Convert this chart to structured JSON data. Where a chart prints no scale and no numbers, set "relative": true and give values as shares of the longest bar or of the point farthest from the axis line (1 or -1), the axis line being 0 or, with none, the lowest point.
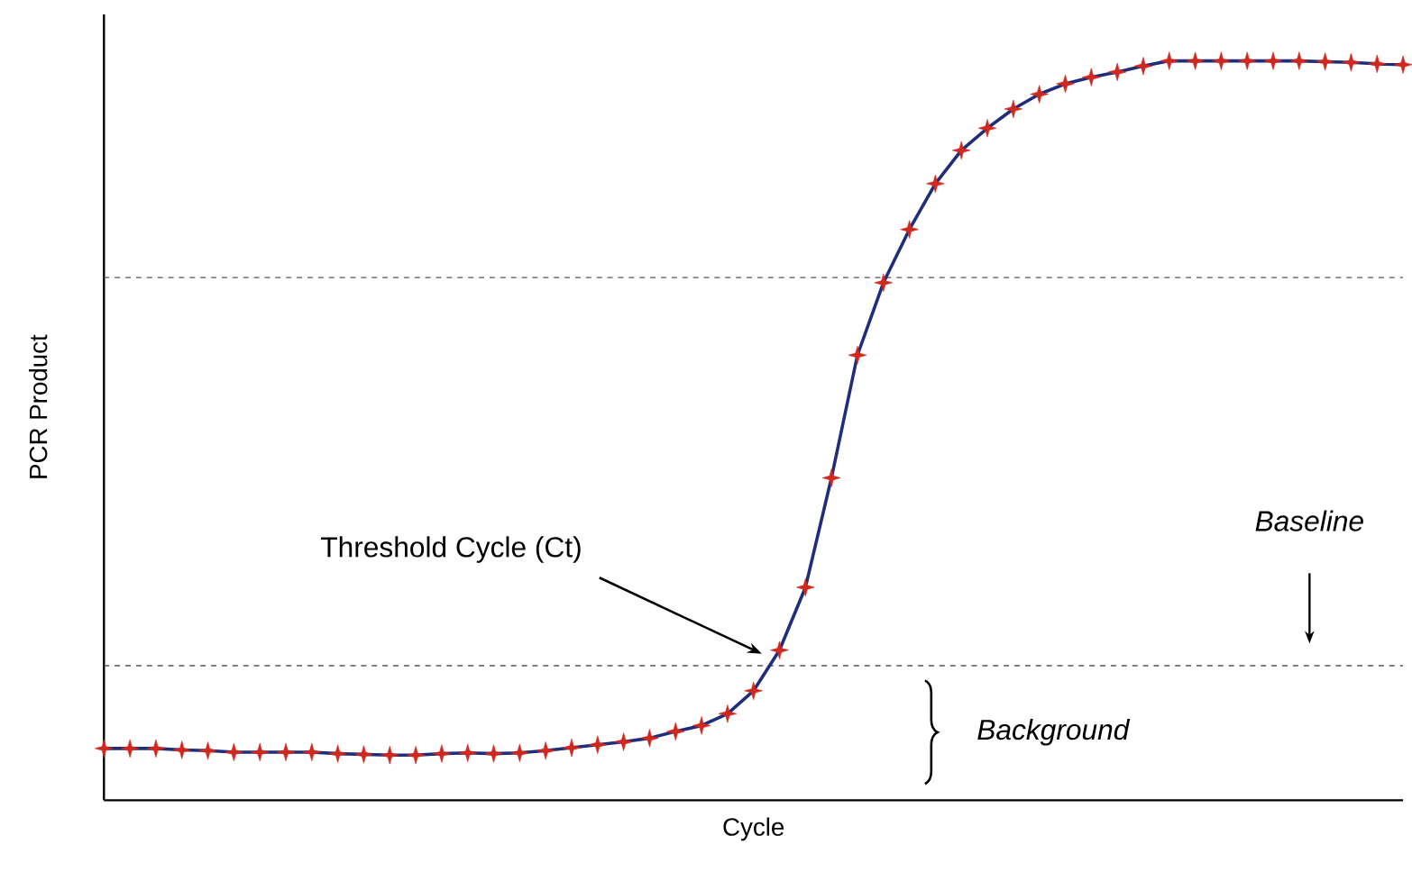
{
  "chart_data": {
    "type": "line",
    "relative": true,
    "xlabel": "Cycle",
    "ylabel": "PCR Product",
    "tick_labels": false,
    "categories": [
      null,
      null,
      null,
      null,
      null,
      null,
      null,
      null,
      null,
      null,
      null,
      null,
      null,
      null,
      null,
      null,
      null,
      null,
      null,
      null,
      null,
      null,
      null,
      null,
      null,
      null,
      null,
      null,
      null,
      null,
      null,
      null,
      null,
      null,
      null,
      null,
      null,
      null,
      null,
      null,
      null,
      null,
      null,
      null,
      null,
      null,
      null,
      null,
      null,
      null,
      null
    ],
    "series": [
      {
        "color": "#1f2d7b",
        "marker": "star",
        "colors": [
          "#d0281f",
          "#d0281f",
          "#d0281f",
          "#d0281f",
          "#d0281f",
          "#d0281f",
          "#d0281f",
          "#d0281f",
          "#d0281f",
          "#d0281f",
          "#d0281f",
          "#d0281f",
          "#d0281f",
          "#d0281f",
          "#d0281f",
          "#d0281f",
          "#d0281f",
          "#d0281f",
          "#d0281f",
          "#d0281f",
          "#d0281f",
          "#d0281f",
          "#d0281f",
          "#d0281f",
          "#d0281f",
          "#d0281f",
          "#d0281f",
          "#d0281f",
          "#d0281f",
          "#d0281f",
          "#d0281f",
          "#d0281f",
          "#d0281f",
          "#d0281f",
          "#d0281f",
          "#d0281f",
          "#d0281f",
          "#d0281f",
          "#d0281f",
          "#d0281f",
          "#d0281f",
          "#d0281f",
          "#d0281f",
          "#d0281f",
          "#d0281f",
          "#d0281f",
          "#d0281f",
          "#d0281f",
          "#d0281f",
          "#d0281f",
          "#d0281f"
        ],
        "values": [
          0.07,
          0.07,
          0.07,
          0.068,
          0.067,
          0.065,
          0.065,
          0.065,
          0.065,
          0.063,
          0.062,
          0.061,
          0.061,
          0.063,
          0.064,
          0.063,
          0.064,
          0.067,
          0.071,
          0.075,
          0.079,
          0.084,
          0.093,
          0.101,
          0.117,
          0.148,
          0.203,
          0.288,
          0.436,
          0.602,
          0.7,
          0.772,
          0.834,
          0.879,
          0.909,
          0.935,
          0.955,
          0.969,
          0.978,
          0.985,
          0.993,
          1.0,
          1.0,
          1.0,
          1.0,
          1.0,
          1.0,
          0.999,
          0.998,
          0.996,
          0.995
        ]
      }
    ],
    "ref_lines": [
      {
        "axis": "y",
        "value": 0.182,
        "line_style": "dashed",
        "color": "#555555"
      },
      {
        "axis": "y",
        "value": 0.707,
        "line_style": "dashed",
        "color": "#555555"
      }
    ],
    "annotations": [
      "Threshold Cycle (Ct)",
      "Baseline",
      "Background"
    ]
  }
}
